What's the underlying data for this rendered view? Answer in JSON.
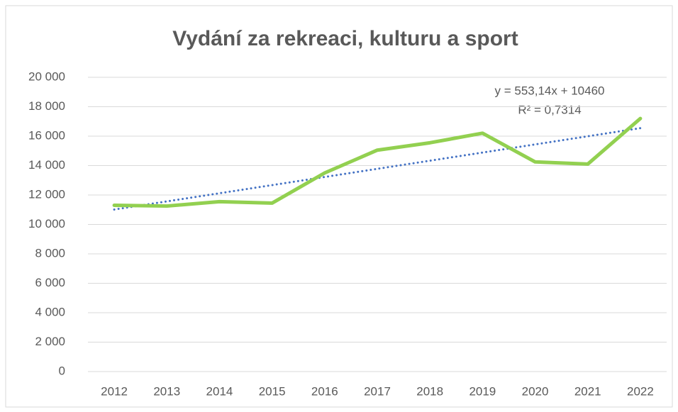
{
  "chart_data": {
    "type": "line",
    "title": "Vydání za rekreaci, kulturu a sport",
    "categories": [
      "2012",
      "2013",
      "2014",
      "2015",
      "2016",
      "2017",
      "2018",
      "2019",
      "2020",
      "2021",
      "2022"
    ],
    "series": [
      {
        "color": "#92d050",
        "values": [
          11300,
          11250,
          11550,
          11450,
          13500,
          15050,
          15550,
          16200,
          14250,
          14100,
          17200
        ]
      }
    ],
    "ylim": [
      0,
      20000
    ],
    "yticks": [
      0,
      {
        "value": 2000,
        "label": "2 000"
      },
      {
        "value": 4000,
        "label": "4 000"
      },
      {
        "value": 6000,
        "label": "6 000"
      },
      {
        "value": 8000,
        "label": "8 000"
      },
      {
        "value": 10000,
        "label": "10 000"
      },
      {
        "value": 12000,
        "label": "12 000"
      },
      {
        "value": 14000,
        "label": "14 000"
      },
      {
        "value": 16000,
        "label": "16 000"
      },
      {
        "value": 18000,
        "label": "18 000"
      },
      {
        "value": 20000,
        "label": "20 000"
      }
    ],
    "grid": true,
    "trendline": {
      "equation": "y = 553,14x + 10460",
      "r_squared": "R² = 0,7314",
      "slope": 553.14,
      "intercept": 10460,
      "color": "#4472c4"
    }
  }
}
